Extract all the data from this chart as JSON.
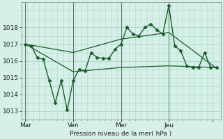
{
  "background_color": "#d4f0e8",
  "grid_color": "#b0d8c8",
  "line_color": "#1a5c28",
  "marker_color": "#1a5c28",
  "xlabel": "Pression niveau de la mer( hPa )",
  "xlim": [
    0,
    100
  ],
  "ylim": [
    1012.5,
    1019.5
  ],
  "yticks": [
    1013,
    1014,
    1015,
    1016,
    1017,
    1018
  ],
  "xtick_positions": [
    2,
    26,
    50,
    74,
    96
  ],
  "xtick_labels": [
    "Mar",
    "Ven",
    "Mer",
    "Jeu",
    ""
  ],
  "vlines": [
    2,
    26,
    50,
    74
  ],
  "series": {
    "line1": {
      "x": [
        2,
        5,
        8,
        11,
        14,
        17,
        20,
        23,
        26,
        29,
        32,
        35,
        38,
        41,
        44,
        47,
        50,
        53,
        56,
        59,
        62,
        65,
        68,
        71,
        74,
        77,
        80,
        83,
        86,
        89,
        92,
        95,
        98
      ],
      "y": [
        1017.0,
        1016.9,
        1016.2,
        1016.1,
        1014.8,
        1013.5,
        1014.8,
        1013.05,
        1014.8,
        1015.5,
        1015.4,
        1016.5,
        1016.2,
        1016.15,
        1016.15,
        1016.7,
        1017.0,
        1018.0,
        1017.6,
        1017.5,
        1018.0,
        1018.2,
        1017.85,
        1017.6,
        1019.3,
        1016.9,
        1016.6,
        1015.7,
        1015.6,
        1015.6,
        1016.5,
        1015.6,
        1015.6
      ],
      "marker": "D",
      "markersize": 2.5,
      "linewidth": 1.0
    },
    "line2": {
      "x": [
        2,
        26,
        50,
        74,
        98
      ],
      "y": [
        1017.0,
        1016.5,
        1017.3,
        1017.7,
        1015.55
      ],
      "linewidth": 0.9
    },
    "line3": {
      "x": [
        2,
        26,
        50,
        74,
        98
      ],
      "y": [
        1017.0,
        1015.35,
        1015.6,
        1015.7,
        1015.6
      ],
      "linewidth": 0.9
    }
  }
}
